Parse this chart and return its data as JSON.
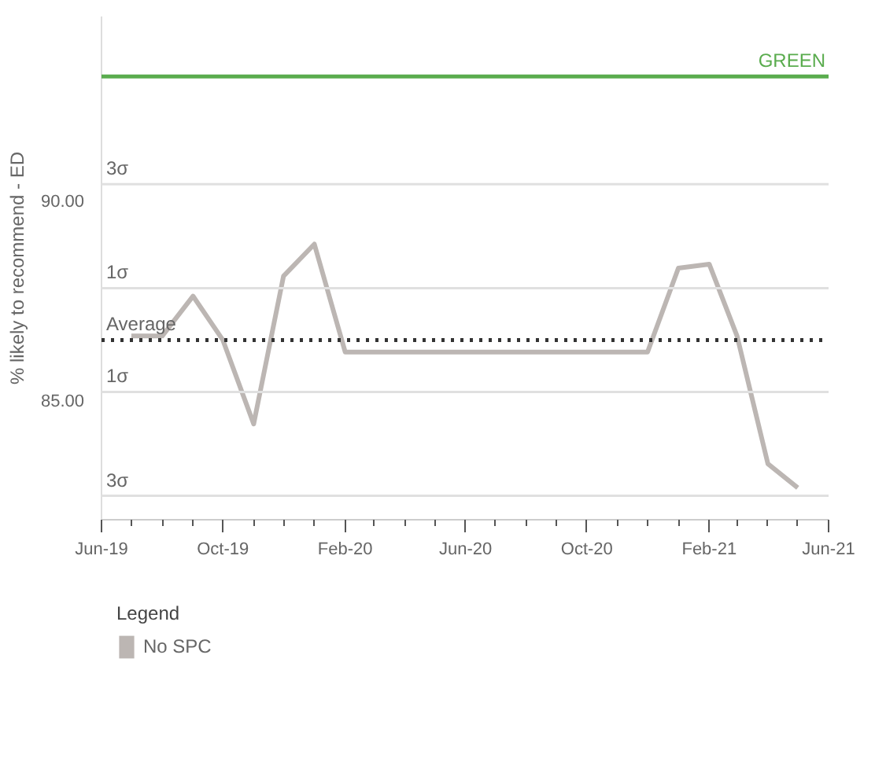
{
  "chart_data": {
    "type": "line",
    "ylabel": "% likely to recommend - ED",
    "legend_title": "Legend",
    "legend": "bottom left",
    "x": [
      "2019-07",
      "2019-08",
      "2019-09",
      "2019-10",
      "2019-11",
      "2019-12",
      "2020-01",
      "2020-02",
      "2020-03",
      "2020-04",
      "2020-05",
      "2020-06",
      "2020-07",
      "2020-08",
      "2020-09",
      "2020-10",
      "2020-11",
      "2020-12",
      "2021-01",
      "2021-02",
      "2021-03",
      "2021-04",
      "2021-05"
    ],
    "series": [
      {
        "name": "No SPC",
        "color": "#bcb6b3",
        "values": [
          86.6,
          86.6,
          87.6,
          86.5,
          84.4,
          88.1,
          88.9,
          86.2,
          86.2,
          86.2,
          86.2,
          86.2,
          86.2,
          86.2,
          86.2,
          86.2,
          86.2,
          86.2,
          88.3,
          88.4,
          86.6,
          83.4,
          82.8
        ]
      }
    ],
    "xlim": [
      "2019-06",
      "2021-06"
    ],
    "xticks": [
      {
        "value": "2019-06",
        "label": "Jun-19"
      },
      {
        "value": "2019-10",
        "label": "Oct-19"
      },
      {
        "value": "2020-02",
        "label": "Feb-20"
      },
      {
        "value": "2020-06",
        "label": "Jun-20"
      },
      {
        "value": "2020-10",
        "label": "Oct-20"
      },
      {
        "value": "2021-02",
        "label": "Feb-21"
      },
      {
        "value": "2021-06",
        "label": "Jun-21"
      }
    ],
    "ylim": [
      82.0,
      94.6
    ],
    "yticks": [
      {
        "value": 85,
        "label": "85.00"
      },
      {
        "value": 90,
        "label": "90.00"
      }
    ],
    "grid": false,
    "line_style": "solid",
    "marker": "none",
    "ref_lines": [
      {
        "axis": "y",
        "value": 93.1,
        "label": "GREEN",
        "color": "#5aac4e",
        "line_style": "solid"
      },
      {
        "axis": "y",
        "value": 90.4,
        "label": "3σ",
        "color": "#e0e0e0",
        "line_style": "solid"
      },
      {
        "axis": "y",
        "value": 87.8,
        "label": "1σ",
        "color": "#e0e0e0",
        "line_style": "solid"
      },
      {
        "axis": "y",
        "value": 86.5,
        "label": "Average",
        "color": "#333333",
        "line_style": "dotted"
      },
      {
        "axis": "y",
        "value": 85.2,
        "label": "1σ",
        "color": "#e0e0e0",
        "line_style": "solid"
      },
      {
        "axis": "y",
        "value": 82.6,
        "label": "3σ",
        "color": "#e0e0e0",
        "line_style": "solid"
      }
    ]
  }
}
